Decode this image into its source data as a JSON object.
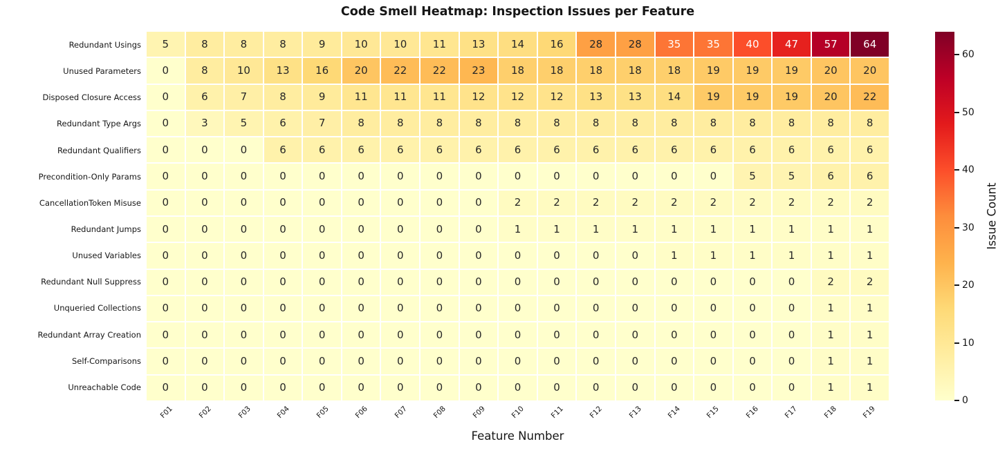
{
  "figure": {
    "background": "#ffffff"
  },
  "chart_data": {
    "type": "heatmap",
    "title": "Code Smell Heatmap: Inspection Issues per Feature",
    "xlabel": "Feature Number",
    "colorbar_label": "Issue Count",
    "x_categories": [
      "F01",
      "F02",
      "F03",
      "F04",
      "F05",
      "F06",
      "F07",
      "F08",
      "F09",
      "F10",
      "F11",
      "F12",
      "F13",
      "F14",
      "F15",
      "F16",
      "F17",
      "F18",
      "F19"
    ],
    "y_categories": [
      "Redundant Usings",
      "Unused Parameters",
      "Disposed Closure Access",
      "Redundant Type Args",
      "Redundant Qualifiers",
      "Precondition-Only Params",
      "CancellationToken Misuse",
      "Redundant Jumps",
      "Unused Variables",
      "Redundant Null Suppress",
      "Unqueried Collections",
      "Redundant Array Creation",
      "Self-Comparisons",
      "Unreachable Code"
    ],
    "values": [
      [
        5,
        8,
        8,
        8,
        9,
        10,
        10,
        11,
        13,
        14,
        16,
        28,
        28,
        35,
        35,
        40,
        47,
        57,
        64
      ],
      [
        0,
        8,
        10,
        13,
        16,
        20,
        22,
        22,
        23,
        18,
        18,
        18,
        18,
        18,
        19,
        19,
        19,
        20,
        20
      ],
      [
        0,
        6,
        7,
        8,
        9,
        11,
        11,
        11,
        12,
        12,
        12,
        13,
        13,
        14,
        19,
        19,
        19,
        20,
        22
      ],
      [
        0,
        3,
        5,
        6,
        7,
        8,
        8,
        8,
        8,
        8,
        8,
        8,
        8,
        8,
        8,
        8,
        8,
        8,
        8
      ],
      [
        0,
        0,
        0,
        6,
        6,
        6,
        6,
        6,
        6,
        6,
        6,
        6,
        6,
        6,
        6,
        6,
        6,
        6,
        6
      ],
      [
        0,
        0,
        0,
        0,
        0,
        0,
        0,
        0,
        0,
        0,
        0,
        0,
        0,
        0,
        0,
        5,
        5,
        6,
        6
      ],
      [
        0,
        0,
        0,
        0,
        0,
        0,
        0,
        0,
        0,
        2,
        2,
        2,
        2,
        2,
        2,
        2,
        2,
        2,
        2
      ],
      [
        0,
        0,
        0,
        0,
        0,
        0,
        0,
        0,
        0,
        1,
        1,
        1,
        1,
        1,
        1,
        1,
        1,
        1,
        1
      ],
      [
        0,
        0,
        0,
        0,
        0,
        0,
        0,
        0,
        0,
        0,
        0,
        0,
        0,
        1,
        1,
        1,
        1,
        1,
        1
      ],
      [
        0,
        0,
        0,
        0,
        0,
        0,
        0,
        0,
        0,
        0,
        0,
        0,
        0,
        0,
        0,
        0,
        0,
        2,
        2
      ],
      [
        0,
        0,
        0,
        0,
        0,
        0,
        0,
        0,
        0,
        0,
        0,
        0,
        0,
        0,
        0,
        0,
        0,
        1,
        1
      ],
      [
        0,
        0,
        0,
        0,
        0,
        0,
        0,
        0,
        0,
        0,
        0,
        0,
        0,
        0,
        0,
        0,
        0,
        1,
        1
      ],
      [
        0,
        0,
        0,
        0,
        0,
        0,
        0,
        0,
        0,
        0,
        0,
        0,
        0,
        0,
        0,
        0,
        0,
        1,
        1
      ],
      [
        0,
        0,
        0,
        0,
        0,
        0,
        0,
        0,
        0,
        0,
        0,
        0,
        0,
        0,
        0,
        0,
        0,
        1,
        1
      ]
    ],
    "vmin": 0,
    "vmax": 64,
    "colormap": "YlOrRd",
    "colormap_colors": [
      "#ffffcc",
      "#ffeda0",
      "#fed976",
      "#feb24c",
      "#fd8d3c",
      "#fc4e2a",
      "#e31a1c",
      "#bd0026",
      "#800026"
    ],
    "colorbar_ticks": [
      0,
      10,
      20,
      30,
      40,
      50,
      60
    ],
    "grid_line_color": "#ffffff",
    "annotations": true,
    "annot_dark_text": "#262626",
    "annot_light_text": "#ffffff",
    "legend_position": "right-colorbar",
    "grid_on": false
  }
}
